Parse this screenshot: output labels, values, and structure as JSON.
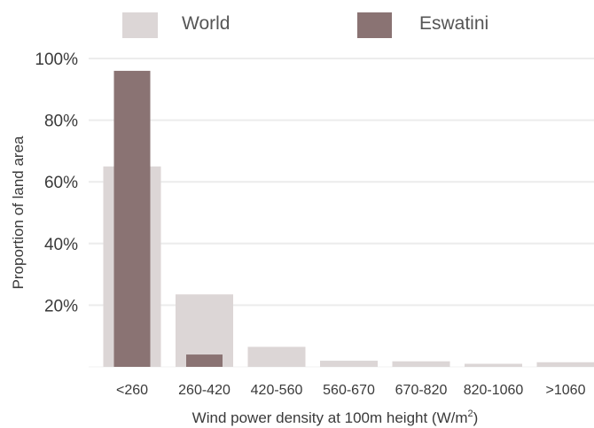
{
  "chart_data": {
    "type": "bar",
    "categories": [
      "<260",
      "260-420",
      "420-560",
      "560-670",
      "670-820",
      "820-1060",
      ">1060"
    ],
    "series": [
      {
        "name": "World",
        "values": [
          65,
          23.5,
          6.5,
          2,
          1.8,
          1,
          1.5
        ],
        "color": "#dcd6d6"
      },
      {
        "name": "Eswatini",
        "values": [
          96,
          4,
          0,
          0,
          0,
          0,
          0
        ],
        "color": "#8a7373"
      }
    ],
    "xlabel": "Wind power density at 100m height (W/m",
    "xlabel_sup": "2",
    "xlabel_end": ")",
    "ylabel": "Proportion of land area",
    "ylim": [
      0,
      100
    ],
    "yticks": [
      20,
      40,
      60,
      80,
      100
    ],
    "ytick_labels": [
      "20%",
      "40%",
      "60%",
      "80%",
      "100%"
    ],
    "grid": true,
    "legend_position": "top"
  }
}
